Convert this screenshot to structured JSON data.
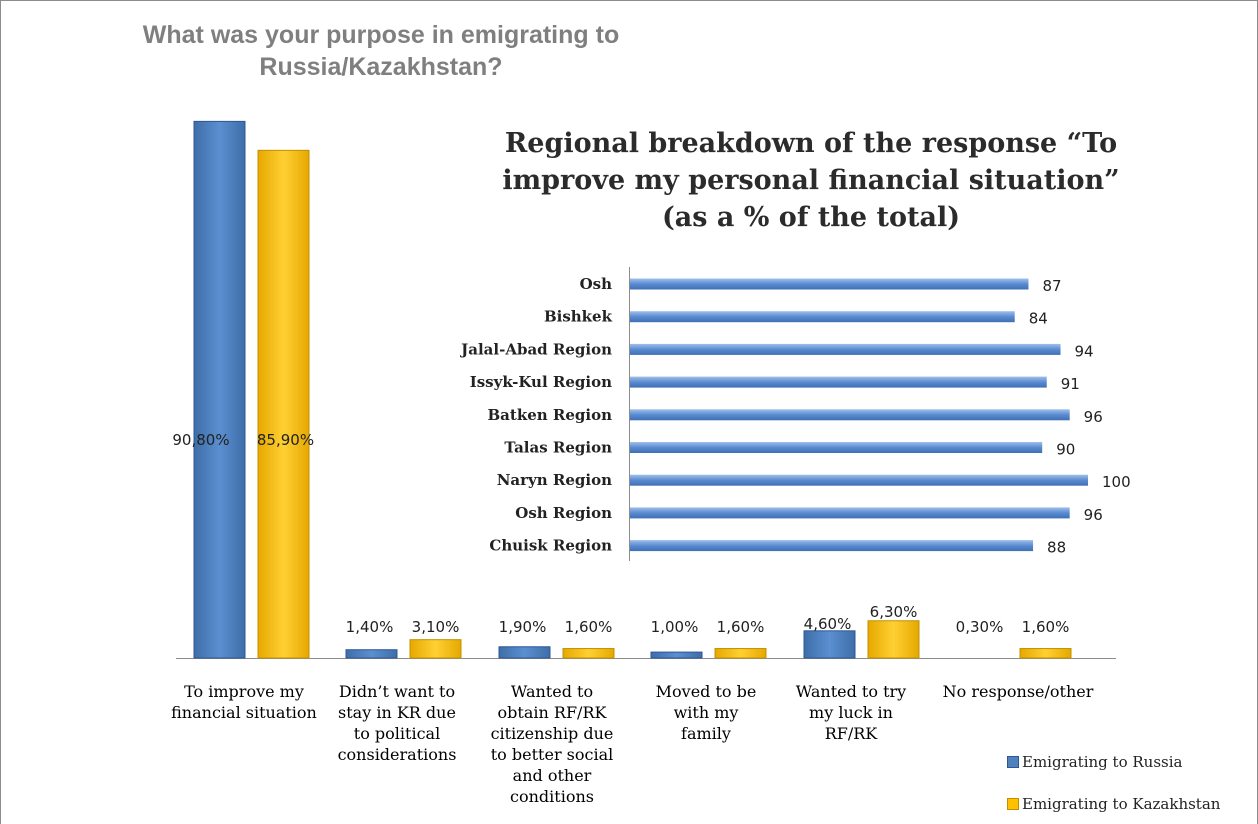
{
  "chart_data": [
    {
      "type": "bar",
      "title": "What was your purpose in emigrating to Russia/Kazakhstan?",
      "categories": [
        "To improve my financial situation",
        "Didn’t want to stay in KR due to political considerations",
        "Wanted to obtain RF/RK citizenship due to better social and other conditions",
        "Moved to be with my family",
        "Wanted to try my luck in RF/RK",
        "No response/other"
      ],
      "series": [
        {
          "name": "Emigrating to Russia",
          "values": [
            90.8,
            1.4,
            1.9,
            1.0,
            4.6,
            0.3
          ],
          "labels": [
            "90,80%",
            "1,40%",
            "1,90%",
            "1,00%",
            "4,60%",
            "0,30%"
          ],
          "color": "#4f81bd"
        },
        {
          "name": "Emigrating to Kazakhstan",
          "values": [
            85.9,
            3.1,
            1.6,
            1.6,
            6.3,
            1.6
          ],
          "labels": [
            "85,90%",
            "3,10%",
            "1,60%",
            "1,60%",
            "6,30%",
            "1,60%"
          ],
          "color": "#ffc000"
        }
      ],
      "ylim": [
        0,
        100
      ],
      "legend": "bottom-right"
    },
    {
      "type": "bar",
      "orientation": "horizontal",
      "title": "Regional breakdown of the response “To improve my personal financial situation” (as a % of the total)",
      "categories": [
        "Osh",
        "Bishkek",
        "Jalal-Abad Region",
        "Issyk-Kul Region",
        "Batken Region",
        "Talas Region",
        "Naryn Region",
        "Osh Region",
        "Chuisk Region"
      ],
      "values": [
        87,
        84,
        94,
        91,
        96,
        90,
        100,
        96,
        88
      ],
      "xlim": [
        0,
        100
      ],
      "color": "#4f81bd"
    }
  ],
  "main_title": {
    "line1": "What was your purpose in emigrating to",
    "line2": "Russia/Kazakhstan?"
  },
  "inset_title": {
    "line1": "Regional breakdown of the response “To",
    "line2": "improve my personal financial situation”",
    "line3": "(as a % of the total)"
  },
  "category_labels": [
    [
      "To improve my",
      "financial situation"
    ],
    [
      "Didn’t want to",
      "stay in KR due",
      "to political",
      "considerations"
    ],
    [
      "Wanted to",
      "obtain RF/RK",
      "citizenship due",
      "to better social",
      "and other",
      "conditions"
    ],
    [
      "Moved to be",
      "with my",
      "family"
    ],
    [
      "Wanted to try",
      "my luck in",
      "RF/RK"
    ],
    [
      "No response/other"
    ]
  ],
  "legend": {
    "russia": "Emigrating to Russia",
    "kazakhstan": "Emigrating to Kazakhstan"
  }
}
